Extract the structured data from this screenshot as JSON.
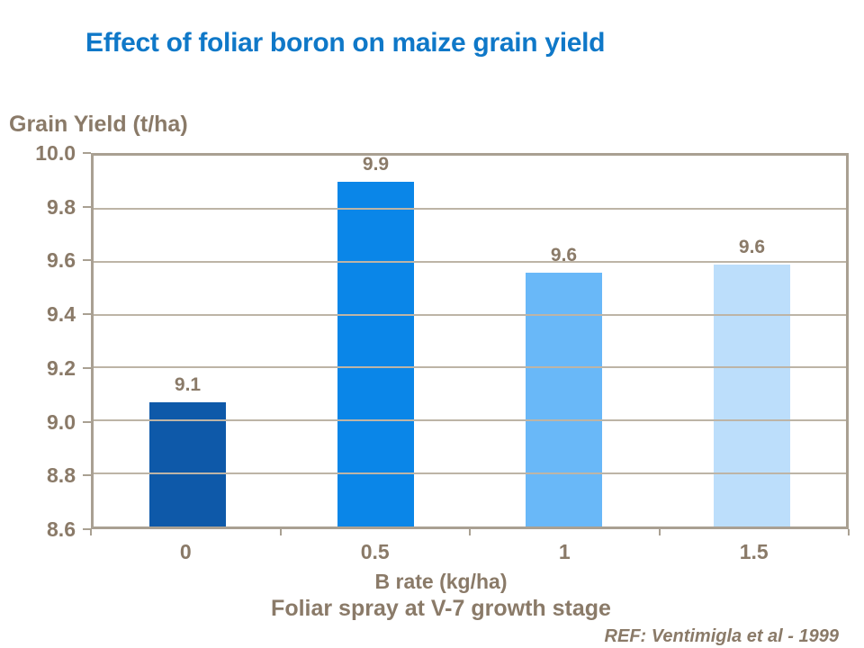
{
  "slide": {
    "title": "Effect of foliar boron on maize grain yield",
    "title_color": "#0F78C8",
    "ref_note": "REF: Ventimigla et al - 1999"
  },
  "chart_data": {
    "type": "bar",
    "title": "Effect of foliar boron on maize grain yield",
    "ylabel": "Grain Yield (t/ha)",
    "xlabel": "B rate (kg/ha)",
    "x_sublabel": "Foliar spray at V-7 growth stage",
    "categories": [
      "0",
      "0.5",
      "1",
      "1.5"
    ],
    "values": [
      9.1,
      9.9,
      9.6,
      9.6
    ],
    "values_precise": [
      9.07,
      9.9,
      9.56,
      9.59
    ],
    "bar_labels": [
      "9.1",
      "9.9",
      "9.6",
      "9.6"
    ],
    "bar_colors": [
      "#0E59A9",
      "#0A86E8",
      "#69B8F8",
      "#BCDEFB"
    ],
    "ylim": [
      8.6,
      10.0
    ],
    "ytick_step": 0.2,
    "yticks": [
      "10.0",
      "9.8",
      "9.6",
      "9.4",
      "9.2",
      "9.0",
      "8.8",
      "8.6"
    ],
    "grid": "horizontal",
    "legend": "none",
    "annotation": "REF: Ventimigla et al - 1999",
    "colors": {
      "text": "#8A7A68",
      "axis": "#A9A092",
      "grid": "#BDB4A6",
      "title": "#0F78C8",
      "background": "#FFFFFF"
    }
  }
}
